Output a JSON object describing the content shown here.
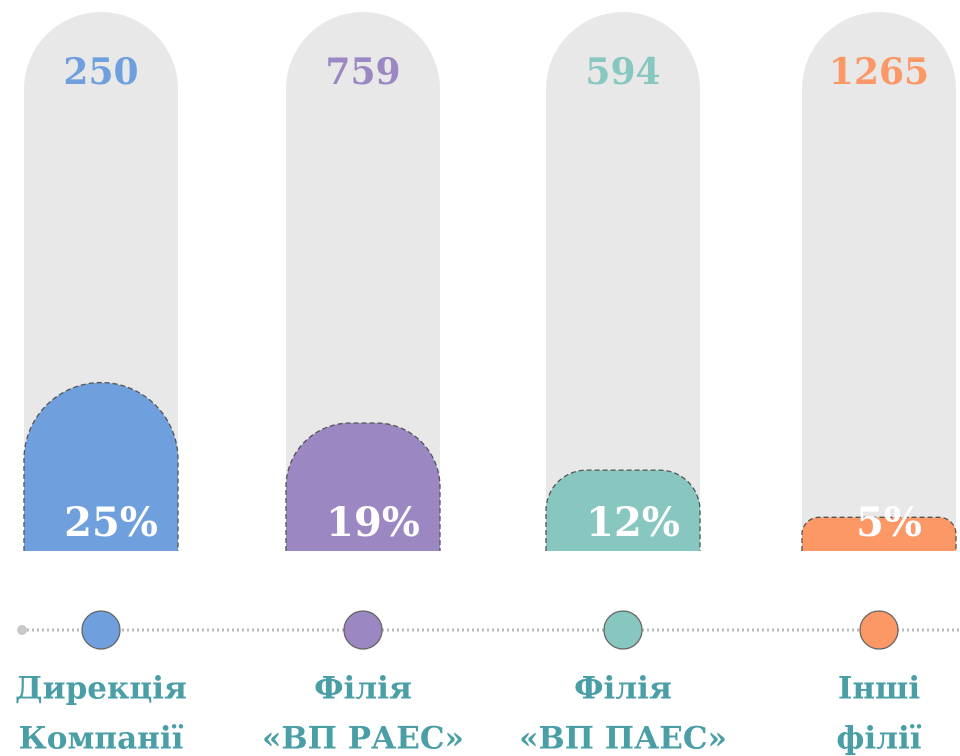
{
  "chart_data": {
    "type": "bar",
    "categories": [
      [
        "Дирекція",
        "Компанії"
      ],
      [
        "Філія",
        "«ВП РАЕС»"
      ],
      [
        "Філія",
        "«ВП ПАЕС»"
      ],
      [
        "Інші",
        "філії"
      ]
    ],
    "counts": [
      250,
      759,
      594,
      1265
    ],
    "values": [
      25,
      19,
      12,
      5
    ],
    "value_labels": [
      "25%",
      "19%",
      "12%",
      "5%"
    ],
    "colors": [
      "#6f9fdc",
      "#9b87c2",
      "#88c7bf",
      "#fb9866"
    ],
    "ylim": [
      0,
      80
    ]
  }
}
